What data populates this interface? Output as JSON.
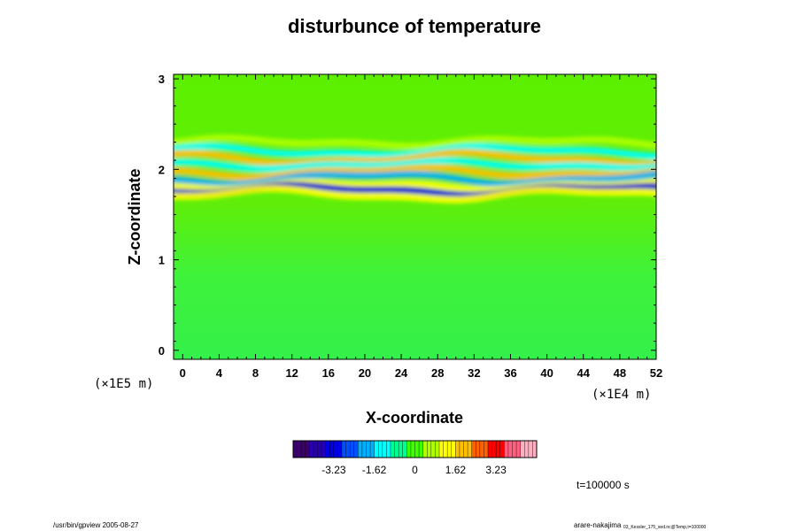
{
  "chart_data": {
    "type": "heatmap",
    "title": "disturbunce of temperature",
    "xlabel": "X-coordinate",
    "ylabel": "Z-coordinate",
    "x_unit": "(×1E4 m)",
    "y_unit": "(×1E5 m)",
    "xlim": [
      -1,
      52
    ],
    "ylim": [
      -0.1,
      3.05
    ],
    "x_ticks": [
      0,
      4,
      8,
      12,
      16,
      20,
      24,
      28,
      32,
      36,
      40,
      44,
      48,
      52
    ],
    "y_ticks": [
      0,
      1,
      2,
      3
    ],
    "colorbar": {
      "ticks": [
        "-3.23",
        "-1.62",
        "0",
        "1.62",
        "3.23"
      ],
      "range": [
        -4.85,
        4.85
      ],
      "colors": [
        "#3b006b",
        "#2600b0",
        "#0000e8",
        "#0050ff",
        "#00b0ff",
        "#00ffff",
        "#00ff90",
        "#40ff00",
        "#b0ff00",
        "#ffff00",
        "#ffc000",
        "#ff6000",
        "#ff0000",
        "#ff6080",
        "#ffb0c0"
      ]
    },
    "background_value": 0.6,
    "bands": [
      {
        "z": 2.3,
        "value": 0.8
      },
      {
        "z": 2.2,
        "value": -1.6
      },
      {
        "z": 2.12,
        "value": 2.2
      },
      {
        "z": 2.05,
        "value": -1.4
      },
      {
        "z": 1.97,
        "value": 1.8
      },
      {
        "z": 1.9,
        "value": -2.2
      },
      {
        "z": 1.82,
        "value": 1.0
      },
      {
        "z": 1.77,
        "value": -3.0
      },
      {
        "z": 1.72,
        "value": 1.4
      }
    ],
    "annotations": {
      "time": "t=100000 s"
    }
  },
  "footer": {
    "left": "/usr/bin/gpview 2005-08-27",
    "right_main": "arare-nakajima",
    "right_sub": "03_Kessler_175_sed.nc@Temp,t=100000"
  }
}
